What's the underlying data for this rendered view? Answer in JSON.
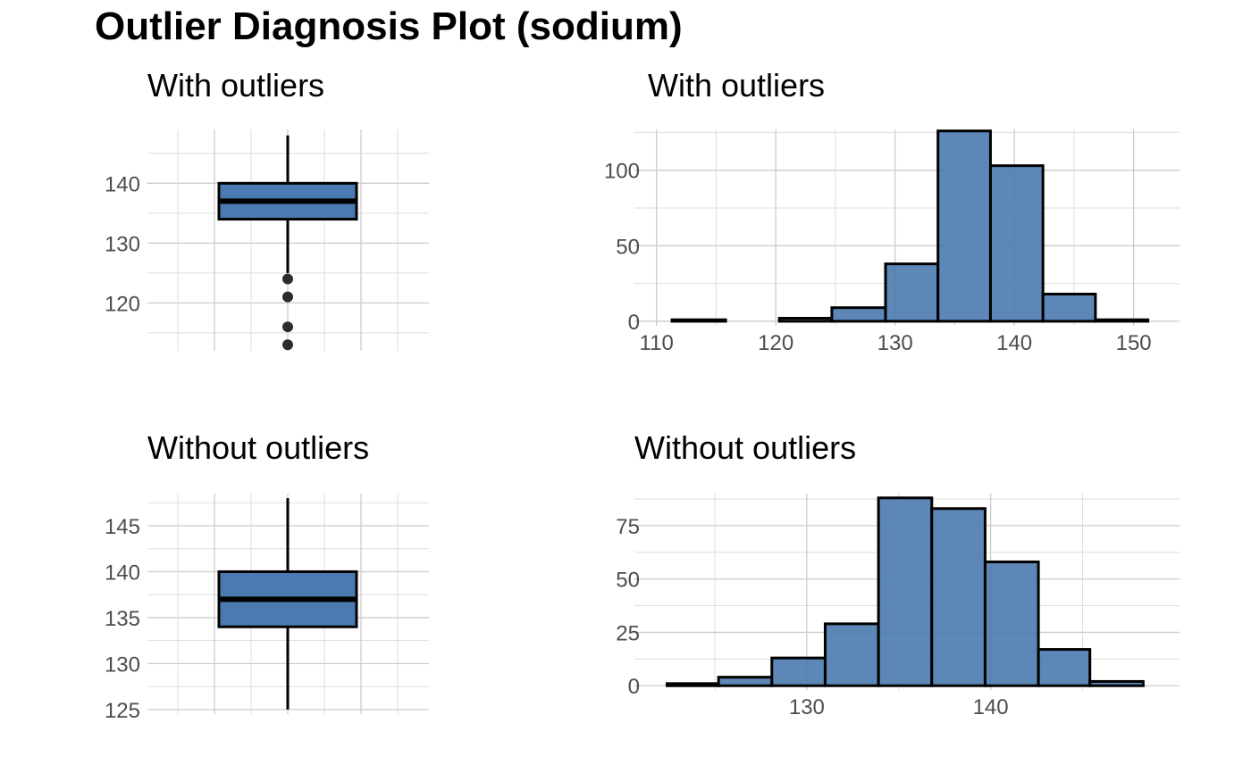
{
  "title": "Outlier Diagnosis Plot (sodium)",
  "colors": {
    "fill": "#4a7aaf",
    "outline": "#000000",
    "outlier": "#222222",
    "grid": "#cccccc"
  },
  "chart_data": [
    {
      "type": "box",
      "title": "With outliers",
      "ylim": [
        112,
        149
      ],
      "yticks": [
        "140",
        "130",
        "120"
      ],
      "ytick_values": [
        140,
        130,
        120
      ],
      "box": {
        "whisker_low": 125,
        "q1": 134,
        "median": 137,
        "q3": 140,
        "whisker_high": 148
      },
      "outliers": [
        124,
        121,
        116,
        113
      ]
    },
    {
      "type": "bar",
      "title": "With outliers",
      "xlim": [
        109.5,
        152.5
      ],
      "ylim": [
        -3,
        127
      ],
      "xticks": [
        "110",
        "120",
        "130",
        "140",
        "150"
      ],
      "xtick_values": [
        110,
        120,
        130,
        140,
        150
      ],
      "yticks": [
        "100",
        "50",
        "0"
      ],
      "ytick_values": [
        100,
        50,
        0
      ],
      "bins": [
        {
          "x0": 111.3,
          "x1": 115.8,
          "count": 1
        },
        {
          "x0": 115.8,
          "x1": 120.3,
          "count": 0
        },
        {
          "x0": 120.3,
          "x1": 124.7,
          "count": 2
        },
        {
          "x0": 124.7,
          "x1": 129.2,
          "count": 9
        },
        {
          "x0": 129.2,
          "x1": 133.6,
          "count": 38
        },
        {
          "x0": 133.6,
          "x1": 138.0,
          "count": 126
        },
        {
          "x0": 138.0,
          "x1": 142.4,
          "count": 103
        },
        {
          "x0": 142.4,
          "x1": 146.8,
          "count": 18
        },
        {
          "x0": 146.8,
          "x1": 151.2,
          "count": 1
        }
      ]
    },
    {
      "type": "box",
      "title": "Without outliers",
      "ylim": [
        124.5,
        148.5
      ],
      "yticks": [
        "145",
        "140",
        "135",
        "130",
        "125"
      ],
      "ytick_values": [
        145,
        140,
        135,
        130,
        125
      ],
      "box": {
        "whisker_low": 125,
        "q1": 134,
        "median": 137,
        "q3": 140,
        "whisker_high": 148
      },
      "outliers": []
    },
    {
      "type": "bar",
      "title": "Without outliers",
      "xlim": [
        121.5,
        149.4
      ],
      "ylim": [
        -2,
        90
      ],
      "xticks": [
        "130",
        "140"
      ],
      "xtick_values": [
        130,
        140
      ],
      "yticks": [
        "75",
        "50",
        "25",
        "0"
      ],
      "ytick_values": [
        75,
        50,
        25,
        0
      ],
      "bins": [
        {
          "x0": 122.4,
          "x1": 125.2,
          "count": 1
        },
        {
          "x0": 125.2,
          "x1": 128.1,
          "count": 4
        },
        {
          "x0": 128.1,
          "x1": 131.0,
          "count": 13
        },
        {
          "x0": 131.0,
          "x1": 133.9,
          "count": 29
        },
        {
          "x0": 133.9,
          "x1": 136.8,
          "count": 88
        },
        {
          "x0": 136.8,
          "x1": 139.7,
          "count": 83
        },
        {
          "x0": 139.7,
          "x1": 142.6,
          "count": 58
        },
        {
          "x0": 142.6,
          "x1": 145.4,
          "count": 17
        },
        {
          "x0": 145.4,
          "x1": 148.3,
          "count": 2
        }
      ]
    }
  ]
}
